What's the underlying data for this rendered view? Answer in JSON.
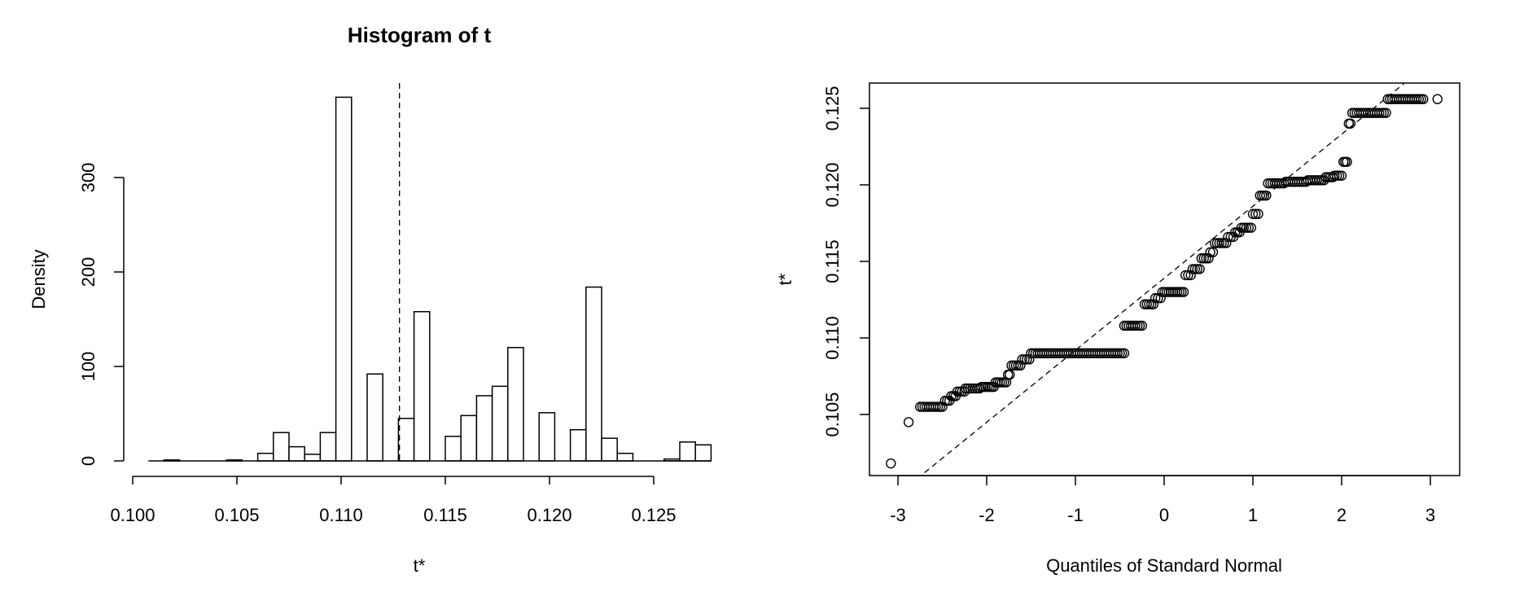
{
  "chart_data": [
    {
      "type": "bar",
      "subtype": "histogram",
      "title": "Histogram of t",
      "xlabel": "t*",
      "ylabel": "Density",
      "xlim": [
        0.1,
        0.1275
      ],
      "ylim": [
        0,
        400
      ],
      "x_ticks": [
        "0.100",
        "0.105",
        "0.110",
        "0.115",
        "0.120",
        "0.125"
      ],
      "y_ticks": [
        "0",
        "100",
        "200",
        "300"
      ],
      "bin_width": 0.00075,
      "bins": [
        {
          "x0": 0.10075,
          "x1": 0.1015,
          "value": 0
        },
        {
          "x0": 0.1015,
          "x1": 0.10225,
          "value": 1
        },
        {
          "x0": 0.10225,
          "x1": 0.103,
          "value": 0
        },
        {
          "x0": 0.103,
          "x1": 0.10375,
          "value": 0
        },
        {
          "x0": 0.10375,
          "x1": 0.1045,
          "value": 0
        },
        {
          "x0": 0.1045,
          "x1": 0.10525,
          "value": 1
        },
        {
          "x0": 0.10525,
          "x1": 0.106,
          "value": 0
        },
        {
          "x0": 0.106,
          "x1": 0.10675,
          "value": 8
        },
        {
          "x0": 0.10675,
          "x1": 0.1075,
          "value": 30
        },
        {
          "x0": 0.1075,
          "x1": 0.10825,
          "value": 15
        },
        {
          "x0": 0.10825,
          "x1": 0.109,
          "value": 7
        },
        {
          "x0": 0.109,
          "x1": 0.10975,
          "value": 30
        },
        {
          "x0": 0.10975,
          "x1": 0.1105,
          "value": 385
        },
        {
          "x0": 0.1105,
          "x1": 0.11125,
          "value": 0
        },
        {
          "x0": 0.11125,
          "x1": 0.112,
          "value": 92
        },
        {
          "x0": 0.112,
          "x1": 0.11275,
          "value": 0
        },
        {
          "x0": 0.11275,
          "x1": 0.1135,
          "value": 45
        },
        {
          "x0": 0.1135,
          "x1": 0.11425,
          "value": 158
        },
        {
          "x0": 0.11425,
          "x1": 0.115,
          "value": 0
        },
        {
          "x0": 0.115,
          "x1": 0.11575,
          "value": 26
        },
        {
          "x0": 0.11575,
          "x1": 0.1165,
          "value": 48
        },
        {
          "x0": 0.1165,
          "x1": 0.11725,
          "value": 69
        },
        {
          "x0": 0.11725,
          "x1": 0.118,
          "value": 79
        },
        {
          "x0": 0.118,
          "x1": 0.11875,
          "value": 120
        },
        {
          "x0": 0.11875,
          "x1": 0.1195,
          "value": 0
        },
        {
          "x0": 0.1195,
          "x1": 0.12025,
          "value": 51
        },
        {
          "x0": 0.12025,
          "x1": 0.121,
          "value": 0
        },
        {
          "x0": 0.121,
          "x1": 0.12175,
          "value": 33
        },
        {
          "x0": 0.12175,
          "x1": 0.1225,
          "value": 184
        },
        {
          "x0": 0.1225,
          "x1": 0.12325,
          "value": 24
        },
        {
          "x0": 0.12325,
          "x1": 0.124,
          "value": 8
        },
        {
          "x0": 0.124,
          "x1": 0.12475,
          "value": 0
        },
        {
          "x0": 0.12475,
          "x1": 0.1255,
          "value": 0
        },
        {
          "x0": 0.1255,
          "x1": 0.12625,
          "value": 2
        },
        {
          "x0": 0.12625,
          "x1": 0.127,
          "value": 20
        },
        {
          "x0": 0.127,
          "x1": 0.12775,
          "value": 17
        }
      ],
      "vline": {
        "x": 0.1128,
        "style": "dashed"
      },
      "grid": false
    },
    {
      "type": "scatter",
      "subtype": "normal-qq",
      "title": "",
      "xlabel": "Quantiles of Standard Normal",
      "ylabel": "t*",
      "xlim": [
        -3.3,
        3.3
      ],
      "ylim": [
        0.1012,
        0.1266
      ],
      "x_ticks": [
        "-3",
        "-2",
        "-1",
        "0",
        "1",
        "2",
        "3"
      ],
      "y_ticks": [
        "0.105",
        "0.110",
        "0.115",
        "0.120",
        "0.125"
      ],
      "reference_line": {
        "x": [
          -2.7,
          2.7
        ],
        "y": [
          0.1012,
          0.1266
        ],
        "style": "dashed"
      },
      "marker": "open-circle",
      "steps": [
        {
          "x0": -3.08,
          "x1": -3.08,
          "y": 0.1018
        },
        {
          "x0": -2.88,
          "x1": -2.88,
          "y": 0.1045
        },
        {
          "x0": -2.75,
          "x1": -2.5,
          "y": 0.1055
        },
        {
          "x0": -2.47,
          "x1": -2.42,
          "y": 0.1059
        },
        {
          "x0": -2.4,
          "x1": -2.35,
          "y": 0.1062
        },
        {
          "x0": -2.33,
          "x1": -2.25,
          "y": 0.1065
        },
        {
          "x0": -2.24,
          "x1": -2.08,
          "y": 0.1067
        },
        {
          "x0": -2.06,
          "x1": -1.92,
          "y": 0.1068
        },
        {
          "x0": -1.9,
          "x1": -1.78,
          "y": 0.1071
        },
        {
          "x0": -1.76,
          "x1": -1.74,
          "y": 0.1076
        },
        {
          "x0": -1.72,
          "x1": -1.62,
          "y": 0.1082
        },
        {
          "x0": -1.6,
          "x1": -1.52,
          "y": 0.1086
        },
        {
          "x0": -1.5,
          "x1": -0.45,
          "y": 0.109
        },
        {
          "x0": -0.45,
          "x1": -0.25,
          "y": 0.1108
        },
        {
          "x0": -0.22,
          "x1": -0.12,
          "y": 0.1122
        },
        {
          "x0": -0.1,
          "x1": -0.04,
          "y": 0.1126
        },
        {
          "x0": -0.02,
          "x1": 0.22,
          "y": 0.113
        },
        {
          "x0": 0.24,
          "x1": 0.3,
          "y": 0.1141
        },
        {
          "x0": 0.32,
          "x1": 0.4,
          "y": 0.1145
        },
        {
          "x0": 0.42,
          "x1": 0.5,
          "y": 0.1152
        },
        {
          "x0": 0.52,
          "x1": 0.55,
          "y": 0.1156
        },
        {
          "x0": 0.57,
          "x1": 0.7,
          "y": 0.1162
        },
        {
          "x0": 0.72,
          "x1": 0.78,
          "y": 0.1166
        },
        {
          "x0": 0.8,
          "x1": 0.85,
          "y": 0.1169
        },
        {
          "x0": 0.87,
          "x1": 0.98,
          "y": 0.1172
        },
        {
          "x0": 1.0,
          "x1": 1.06,
          "y": 0.1181
        },
        {
          "x0": 1.08,
          "x1": 1.15,
          "y": 0.1193
        },
        {
          "x0": 1.17,
          "x1": 1.35,
          "y": 0.1201
        },
        {
          "x0": 1.37,
          "x1": 1.6,
          "y": 0.1202
        },
        {
          "x0": 1.62,
          "x1": 1.8,
          "y": 0.1203
        },
        {
          "x0": 1.82,
          "x1": 1.9,
          "y": 0.1205
        },
        {
          "x0": 1.92,
          "x1": 2.0,
          "y": 0.1206
        },
        {
          "x0": 2.02,
          "x1": 2.06,
          "y": 0.1215
        },
        {
          "x0": 2.08,
          "x1": 2.1,
          "y": 0.124
        },
        {
          "x0": 2.12,
          "x1": 2.5,
          "y": 0.1247
        },
        {
          "x0": 2.52,
          "x1": 2.92,
          "y": 0.1256
        },
        {
          "x0": 3.08,
          "x1": 3.08,
          "y": 0.1256
        }
      ],
      "grid": false
    }
  ]
}
